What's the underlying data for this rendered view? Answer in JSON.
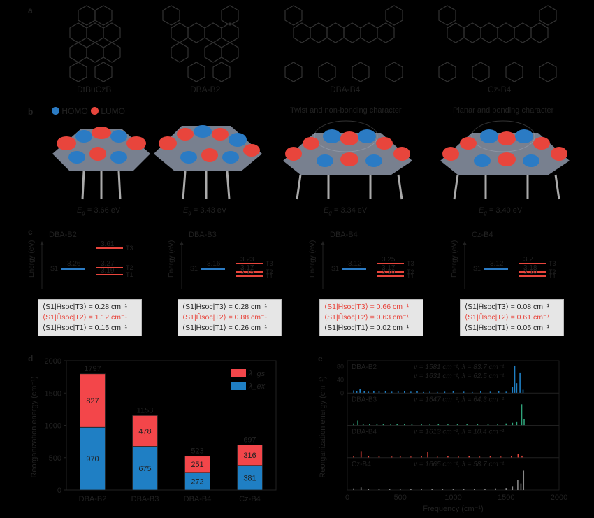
{
  "panel_a": {
    "letter": "a",
    "molecules": [
      {
        "name": "DtBuCzB"
      },
      {
        "name": "DBA-B2"
      },
      {
        "name": "DBA-B4"
      },
      {
        "name": "Cz-B4"
      }
    ]
  },
  "panel_b": {
    "letter": "b",
    "legend": {
      "homo": "HOMO",
      "lumo": "LUMO"
    },
    "annotations": [
      "Twist and non-bonding character",
      "Planar and bonding character"
    ],
    "gaps": [
      {
        "prefix": "E",
        "sub": "g",
        "value": " = 3.66 eV"
      },
      {
        "prefix": "E",
        "sub": "g",
        "value": " = 3.43 eV"
      },
      {
        "prefix": "E",
        "sub": "g",
        "value": " = 3.34 eV"
      },
      {
        "prefix": "E",
        "sub": "g",
        "value": " = 3.40 eV"
      }
    ],
    "colors": {
      "homo": "#2b7bc4",
      "lumo": "#e8453c"
    }
  },
  "panel_c": {
    "letter": "c",
    "y_label": "Energy (eV)",
    "diagrams": [
      {
        "name": "DBA-B2",
        "s1": "3.26",
        "t3": "3.61",
        "t2": "3.27",
        "t1": "3.19",
        "soc": [
          {
            "t": "T3",
            "v": "0.28 cm⁻¹",
            "hl": false
          },
          {
            "t": "T2",
            "v": "1.12 cm⁻¹",
            "hl": true
          },
          {
            "t": "T1",
            "v": "0.15 cm⁻¹",
            "hl": false
          }
        ]
      },
      {
        "name": "DBA-B3",
        "s1": "3.16",
        "t3": "3.23",
        "t2": "3.17",
        "t1": "3.15",
        "soc": [
          {
            "t": "T3",
            "v": "0.28 cm⁻¹",
            "hl": false
          },
          {
            "t": "T2",
            "v": "0.88 cm⁻¹",
            "hl": true
          },
          {
            "t": "T1",
            "v": "0.26 cm⁻¹",
            "hl": false
          }
        ]
      },
      {
        "name": "DBA-B4",
        "s1": "3.12",
        "t3": "3.25",
        "t2": "3.17",
        "t1": "3.10",
        "soc": [
          {
            "t": "T3",
            "v": "0.66 cm⁻¹",
            "hl": true
          },
          {
            "t": "T2",
            "v": "0.63 cm⁻¹",
            "hl": true
          },
          {
            "t": "T1",
            "v": "0.02 cm⁻¹",
            "hl": false
          }
        ]
      },
      {
        "name": "Cz-B4",
        "s1": "3.12",
        "t3": "3.2",
        "t2": "3.18",
        "t1": "3.10",
        "soc": [
          {
            "t": "T3",
            "v": "0.08 cm⁻¹",
            "hl": false
          },
          {
            "t": "T2",
            "v": "0.61 cm⁻¹",
            "hl": true
          },
          {
            "t": "T1",
            "v": "0.05 cm⁻¹",
            "hl": false
          }
        ]
      }
    ]
  },
  "panel_d": {
    "letter": "d",
    "chart_data": {
      "type": "bar",
      "stacked": true,
      "categories": [
        "DBA-B2",
        "DBA-B3",
        "DBA-B4",
        "Cz-B4"
      ],
      "series": [
        {
          "name": "λ_ex",
          "values": [
            970,
            675,
            272,
            381
          ],
          "color": "#1f7fc4"
        },
        {
          "name": "λ_gs",
          "values": [
            827,
            478,
            251,
            316
          ],
          "color": "#f3464a"
        }
      ],
      "totals": [
        1797,
        1153,
        523,
        697
      ],
      "ylabel": "Reorganization energy (cm⁻¹)",
      "ylim": [
        0,
        2000
      ],
      "yticks": [
        0,
        500,
        1000,
        1500,
        2000
      ],
      "legend_position": "top-right"
    }
  },
  "panel_e": {
    "letter": "e",
    "chart_data": {
      "type": "bar",
      "xlabel": "Frequency (cm⁻¹)",
      "ylabel": "Reorganization energy (cm⁻¹)",
      "xlim": [
        0,
        2000
      ],
      "xticks": [
        0,
        500,
        1000,
        1500,
        2000
      ],
      "yticks": [
        0,
        40,
        80
      ],
      "panels": [
        {
          "name": "DBA-B2",
          "color": "#1f7fc4",
          "notes": [
            "ν = 1581 cm⁻¹, λ = 83.7 cm⁻¹",
            "ν = 1631 cm⁻¹, λ = 62.5 cm⁻¹"
          ],
          "peaks": [
            [
              60,
              8
            ],
            [
              90,
              6
            ],
            [
              120,
              12
            ],
            [
              160,
              5
            ],
            [
              200,
              4
            ],
            [
              250,
              7
            ],
            [
              300,
              5
            ],
            [
              360,
              6
            ],
            [
              420,
              4
            ],
            [
              480,
              5
            ],
            [
              540,
              6
            ],
            [
              600,
              4
            ],
            [
              660,
              5
            ],
            [
              720,
              3
            ],
            [
              780,
              4
            ],
            [
              850,
              3
            ],
            [
              920,
              4
            ],
            [
              1000,
              5
            ],
            [
              1100,
              4
            ],
            [
              1180,
              3
            ],
            [
              1260,
              5
            ],
            [
              1350,
              4
            ],
            [
              1430,
              6
            ],
            [
              1500,
              4
            ],
            [
              1560,
              18
            ],
            [
              1581,
              83.7
            ],
            [
              1600,
              30
            ],
            [
              1631,
              62.5
            ],
            [
              1660,
              10
            ]
          ]
        },
        {
          "name": "DBA-B3",
          "color": "#2fa37a",
          "notes": [
            "ν = 1647 cm⁻¹, λ = 64.3 cm⁻¹"
          ],
          "peaks": [
            [
              60,
              6
            ],
            [
              100,
              15
            ],
            [
              150,
              5
            ],
            [
              210,
              4
            ],
            [
              280,
              5
            ],
            [
              340,
              4
            ],
            [
              410,
              3
            ],
            [
              470,
              5
            ],
            [
              540,
              4
            ],
            [
              610,
              3
            ],
            [
              700,
              4
            ],
            [
              780,
              3
            ],
            [
              860,
              4
            ],
            [
              950,
              3
            ],
            [
              1040,
              4
            ],
            [
              1130,
              3
            ],
            [
              1230,
              4
            ],
            [
              1330,
              5
            ],
            [
              1420,
              4
            ],
            [
              1500,
              6
            ],
            [
              1560,
              8
            ],
            [
              1600,
              12
            ],
            [
              1647,
              64.3
            ],
            [
              1670,
              20
            ]
          ]
        },
        {
          "name": "DBA-B4",
          "color": "#e8453c",
          "notes": [
            "ν = 1613 cm⁻¹, λ = 10.4 cm⁻¹"
          ],
          "peaks": [
            [
              60,
              4
            ],
            [
              130,
              20
            ],
            [
              200,
              5
            ],
            [
              300,
              4
            ],
            [
              420,
              3
            ],
            [
              500,
              4
            ],
            [
              600,
              3
            ],
            [
              700,
              4
            ],
            [
              760,
              18
            ],
            [
              850,
              3
            ],
            [
              950,
              4
            ],
            [
              1050,
              3
            ],
            [
              1150,
              4
            ],
            [
              1250,
              3
            ],
            [
              1350,
              4
            ],
            [
              1450,
              3
            ],
            [
              1550,
              5
            ],
            [
              1613,
              10.4
            ],
            [
              1650,
              6
            ]
          ]
        },
        {
          "name": "Cz-B4",
          "color": "#888888",
          "notes": [
            "ν = 1665 cm⁻¹, λ = 58.7 cm⁻¹"
          ],
          "peaks": [
            [
              60,
              5
            ],
            [
              130,
              8
            ],
            [
              200,
              4
            ],
            [
              300,
              3
            ],
            [
              400,
              4
            ],
            [
              500,
              3
            ],
            [
              600,
              4
            ],
            [
              700,
              3
            ],
            [
              800,
              4
            ],
            [
              900,
              3
            ],
            [
              1000,
              4
            ],
            [
              1100,
              3
            ],
            [
              1200,
              4
            ],
            [
              1300,
              3
            ],
            [
              1400,
              5
            ],
            [
              1500,
              6
            ],
            [
              1560,
              12
            ],
            [
              1610,
              30
            ],
            [
              1640,
              20
            ],
            [
              1665,
              58.7
            ]
          ]
        }
      ]
    }
  }
}
